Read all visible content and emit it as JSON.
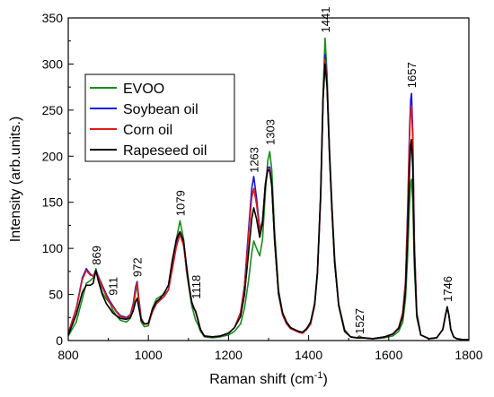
{
  "chart_data": {
    "type": "line",
    "xlabel": "Raman shift (cm",
    "xlabel_sup": "-1",
    "xlabel_end": ")",
    "ylabel": "Intensity (arb.units.)",
    "xlim": [
      800,
      1800
    ],
    "ylim": [
      0,
      350
    ],
    "xticks": [
      "800",
      "1000",
      "1200",
      "1400",
      "1600",
      "1800"
    ],
    "yticks": [
      "0",
      "50",
      "100",
      "150",
      "200",
      "250",
      "300",
      "350"
    ],
    "grid": false,
    "legend_position": "top-left",
    "annotations": [
      {
        "text": "869",
        "x": 869,
        "y": 80
      },
      {
        "text": "911",
        "x": 911,
        "y": 47
      },
      {
        "text": "972",
        "x": 972,
        "y": 67
      },
      {
        "text": "1079",
        "x": 1079,
        "y": 133
      },
      {
        "text": "1118",
        "x": 1118,
        "y": 43
      },
      {
        "text": "1263",
        "x": 1263,
        "y": 180
      },
      {
        "text": "1303",
        "x": 1303,
        "y": 210
      },
      {
        "text": "1441",
        "x": 1441,
        "y": 332
      },
      {
        "text": "1527",
        "x": 1527,
        "y": 5
      },
      {
        "text": "1657",
        "x": 1657,
        "y": 272
      },
      {
        "text": "1746",
        "x": 1746,
        "y": 40
      }
    ],
    "series": [
      {
        "name": "EVOO",
        "color": "#1a8c1a",
        "x": [
          800,
          820,
          835,
          845,
          855,
          862,
          869,
          875,
          885,
          895,
          905,
          911,
          920,
          930,
          945,
          955,
          962,
          968,
          972,
          976,
          982,
          990,
          1000,
          1010,
          1020,
          1030,
          1040,
          1050,
          1060,
          1070,
          1079,
          1088,
          1095,
          1102,
          1108,
          1113,
          1118,
          1123,
          1130,
          1140,
          1160,
          1180,
          1200,
          1215,
          1230,
          1240,
          1250,
          1258,
          1263,
          1270,
          1278,
          1285,
          1292,
          1298,
          1303,
          1308,
          1315,
          1325,
          1335,
          1345,
          1355,
          1365,
          1375,
          1385,
          1395,
          1405,
          1415,
          1422,
          1430,
          1436,
          1441,
          1446,
          1452,
          1458,
          1465,
          1475,
          1490,
          1505,
          1520,
          1527,
          1535,
          1560,
          1590,
          1610,
          1625,
          1635,
          1642,
          1647,
          1652,
          1655,
          1657,
          1660,
          1664,
          1670,
          1680,
          1700,
          1720,
          1735,
          1742,
          1746,
          1750,
          1755,
          1762,
          1770,
          1785,
          1800
        ],
        "y": [
          5,
          20,
          45,
          62,
          65,
          68,
          78,
          68,
          52,
          45,
          40,
          33,
          27,
          22,
          20,
          24,
          35,
          52,
          60,
          42,
          20,
          15,
          16,
          35,
          45,
          48,
          50,
          55,
          80,
          110,
          130,
          110,
          75,
          55,
          38,
          30,
          22,
          18,
          10,
          4,
          3,
          4,
          6,
          10,
          18,
          35,
          65,
          95,
          108,
          100,
          92,
          110,
          160,
          195,
          205,
          185,
          120,
          55,
          30,
          20,
          14,
          12,
          10,
          8,
          12,
          20,
          40,
          75,
          160,
          270,
          328,
          290,
          210,
          150,
          90,
          40,
          12,
          4,
          3,
          5,
          3,
          2,
          3,
          5,
          10,
          20,
          45,
          90,
          150,
          172,
          175,
          150,
          80,
          25,
          6,
          2,
          3,
          12,
          28,
          37,
          28,
          12,
          4,
          2,
          1,
          1
        ]
      },
      {
        "name": "Soybean oil",
        "color": "#1515e6",
        "x": [
          800,
          820,
          835,
          845,
          855,
          862,
          869,
          875,
          885,
          895,
          905,
          911,
          920,
          930,
          945,
          955,
          962,
          968,
          972,
          976,
          982,
          990,
          1000,
          1010,
          1020,
          1030,
          1040,
          1050,
          1060,
          1070,
          1079,
          1088,
          1095,
          1102,
          1108,
          1113,
          1118,
          1123,
          1130,
          1140,
          1160,
          1180,
          1200,
          1215,
          1230,
          1240,
          1250,
          1258,
          1263,
          1270,
          1278,
          1285,
          1292,
          1298,
          1303,
          1308,
          1315,
          1325,
          1335,
          1345,
          1355,
          1365,
          1375,
          1385,
          1395,
          1405,
          1415,
          1422,
          1430,
          1436,
          1441,
          1446,
          1452,
          1458,
          1465,
          1475,
          1490,
          1505,
          1520,
          1527,
          1535,
          1560,
          1590,
          1610,
          1625,
          1635,
          1642,
          1647,
          1652,
          1655,
          1657,
          1660,
          1664,
          1670,
          1680,
          1700,
          1720,
          1735,
          1742,
          1746,
          1750,
          1755,
          1762,
          1770,
          1785,
          1800
        ],
        "y": [
          8,
          35,
          68,
          78,
          72,
          70,
          76,
          70,
          60,
          50,
          42,
          38,
          32,
          27,
          25,
          28,
          40,
          58,
          64,
          46,
          24,
          18,
          18,
          32,
          40,
          44,
          48,
          55,
          80,
          105,
          118,
          105,
          78,
          58,
          42,
          35,
          32,
          24,
          12,
          5,
          4,
          5,
          8,
          14,
          30,
          60,
          120,
          165,
          178,
          155,
          120,
          130,
          170,
          188,
          188,
          170,
          110,
          50,
          28,
          18,
          13,
          11,
          9,
          8,
          12,
          18,
          38,
          72,
          155,
          262,
          310,
          280,
          205,
          145,
          85,
          38,
          10,
          4,
          3,
          3,
          3,
          2,
          4,
          7,
          14,
          30,
          65,
          140,
          230,
          262,
          268,
          225,
          110,
          30,
          6,
          2,
          3,
          12,
          28,
          36,
          28,
          12,
          4,
          2,
          1,
          1
        ]
      },
      {
        "name": "Corn oil",
        "color": "#e01a1a",
        "x": [
          800,
          820,
          835,
          845,
          855,
          862,
          869,
          875,
          885,
          895,
          905,
          911,
          920,
          930,
          945,
          955,
          962,
          968,
          972,
          976,
          982,
          990,
          1000,
          1010,
          1020,
          1030,
          1040,
          1050,
          1060,
          1070,
          1079,
          1088,
          1095,
          1102,
          1108,
          1113,
          1118,
          1123,
          1130,
          1140,
          1160,
          1180,
          1200,
          1215,
          1230,
          1240,
          1250,
          1258,
          1263,
          1270,
          1278,
          1285,
          1292,
          1298,
          1303,
          1308,
          1315,
          1325,
          1335,
          1345,
          1355,
          1365,
          1375,
          1385,
          1395,
          1405,
          1415,
          1422,
          1430,
          1436,
          1441,
          1446,
          1452,
          1458,
          1465,
          1475,
          1490,
          1505,
          1520,
          1527,
          1535,
          1560,
          1590,
          1610,
          1625,
          1635,
          1642,
          1647,
          1652,
          1655,
          1657,
          1660,
          1664,
          1670,
          1680,
          1700,
          1720,
          1735,
          1742,
          1746,
          1750,
          1755,
          1762,
          1770,
          1785,
          1800
        ],
        "y": [
          8,
          34,
          66,
          76,
          71,
          70,
          75,
          69,
          58,
          48,
          40,
          37,
          31,
          26,
          24,
          27,
          38,
          56,
          62,
          45,
          23,
          18,
          18,
          31,
          40,
          44,
          48,
          55,
          78,
          102,
          115,
          103,
          78,
          58,
          42,
          36,
          32,
          24,
          12,
          5,
          4,
          5,
          8,
          14,
          30,
          58,
          115,
          155,
          165,
          148,
          118,
          130,
          168,
          186,
          186,
          168,
          108,
          50,
          28,
          18,
          13,
          11,
          9,
          8,
          12,
          18,
          38,
          72,
          155,
          262,
          305,
          278,
          204,
          144,
          85,
          38,
          10,
          4,
          3,
          3,
          3,
          2,
          4,
          7,
          14,
          30,
          62,
          135,
          222,
          250,
          255,
          215,
          105,
          30,
          6,
          2,
          3,
          12,
          28,
          36,
          28,
          12,
          4,
          2,
          1,
          1
        ]
      },
      {
        "name": "Rapeseed oil",
        "color": "#000000",
        "x": [
          800,
          820,
          835,
          845,
          855,
          862,
          869,
          875,
          885,
          895,
          905,
          911,
          920,
          930,
          945,
          955,
          962,
          968,
          972,
          976,
          982,
          990,
          1000,
          1010,
          1020,
          1030,
          1040,
          1050,
          1060,
          1070,
          1079,
          1088,
          1095,
          1102,
          1108,
          1113,
          1118,
          1123,
          1130,
          1140,
          1160,
          1180,
          1200,
          1215,
          1230,
          1240,
          1250,
          1258,
          1263,
          1270,
          1278,
          1285,
          1292,
          1298,
          1303,
          1308,
          1315,
          1325,
          1335,
          1345,
          1355,
          1365,
          1375,
          1385,
          1395,
          1405,
          1415,
          1422,
          1430,
          1436,
          1441,
          1446,
          1452,
          1458,
          1465,
          1475,
          1490,
          1505,
          1520,
          1527,
          1535,
          1560,
          1590,
          1610,
          1625,
          1635,
          1642,
          1647,
          1652,
          1655,
          1657,
          1660,
          1664,
          1670,
          1680,
          1700,
          1720,
          1735,
          1742,
          1746,
          1750,
          1755,
          1762,
          1770,
          1785,
          1800
        ],
        "y": [
          6,
          28,
          52,
          60,
          60,
          62,
          76,
          65,
          50,
          40,
          34,
          30,
          27,
          24,
          23,
          25,
          32,
          42,
          46,
          36,
          22,
          18,
          19,
          34,
          42,
          46,
          52,
          60,
          88,
          110,
          118,
          108,
          82,
          58,
          42,
          36,
          31,
          23,
          12,
          5,
          4,
          5,
          8,
          14,
          26,
          50,
          95,
          132,
          144,
          132,
          112,
          128,
          168,
          185,
          184,
          168,
          110,
          52,
          30,
          20,
          14,
          12,
          10,
          9,
          13,
          20,
          40,
          74,
          158,
          262,
          300,
          275,
          202,
          142,
          84,
          38,
          10,
          4,
          3,
          3,
          3,
          2,
          4,
          7,
          13,
          26,
          55,
          115,
          188,
          212,
          218,
          185,
          92,
          28,
          6,
          2,
          3,
          12,
          28,
          36,
          28,
          12,
          4,
          2,
          1,
          1
        ]
      }
    ]
  }
}
